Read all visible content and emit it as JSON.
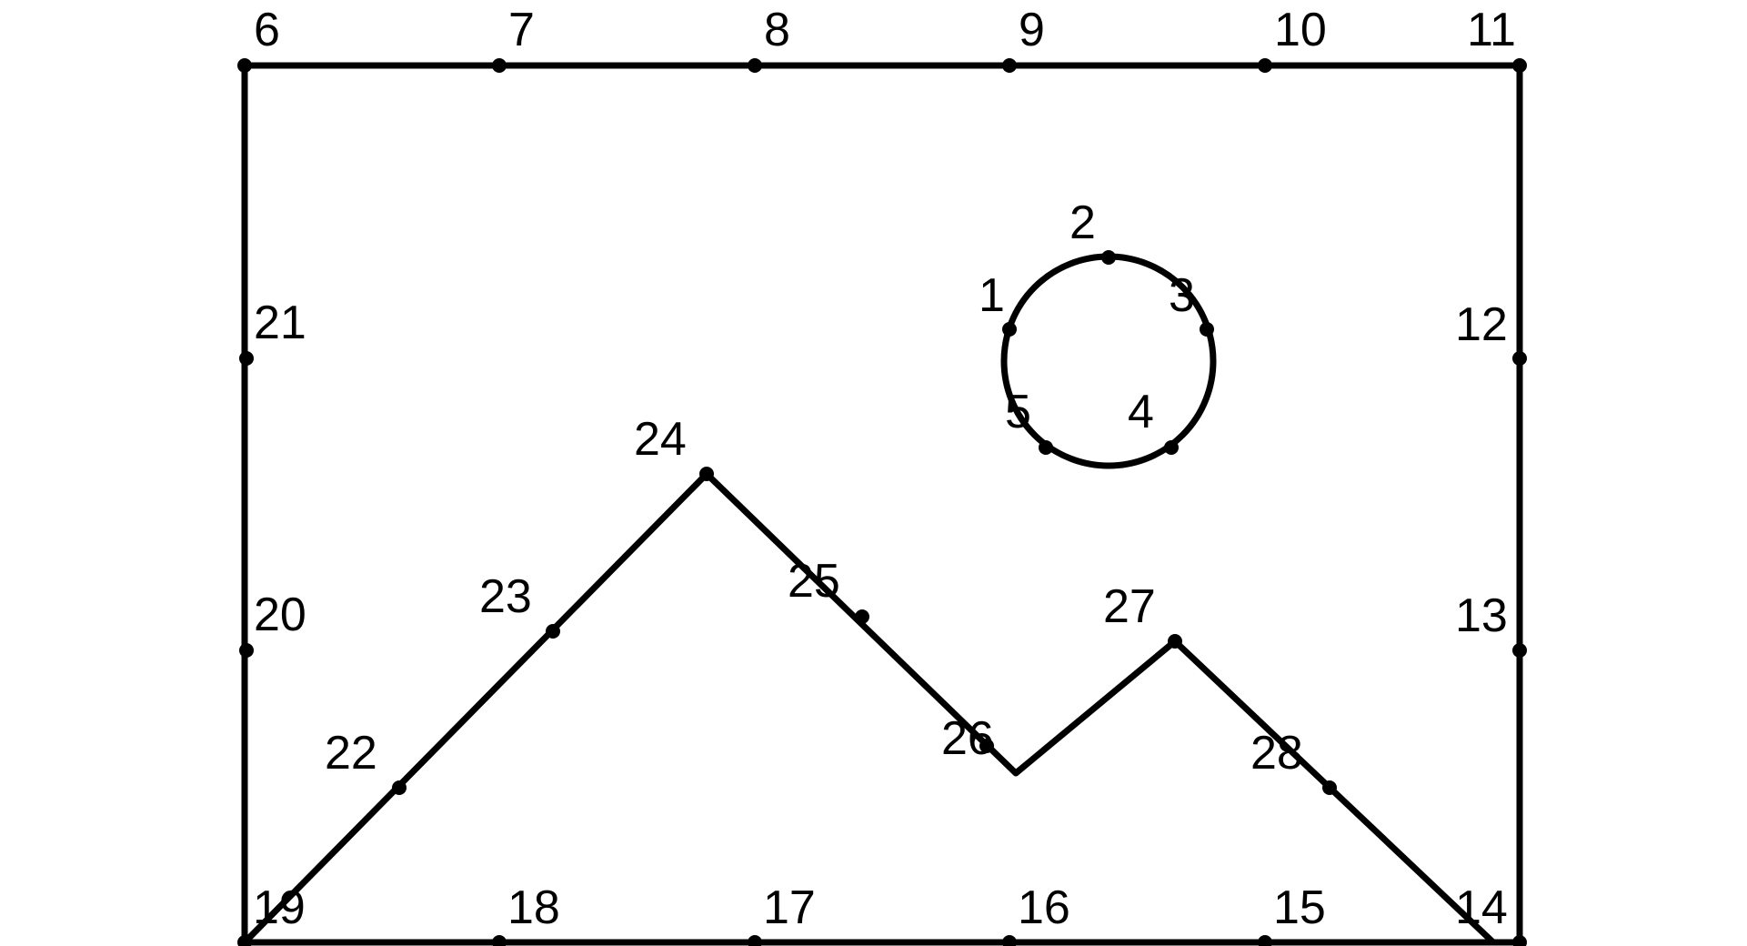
{
  "diagram": {
    "type": "connect-the-dots",
    "subject": "picture frame with sun and mountains",
    "line_color": "#000000",
    "background_color": "#ffffff",
    "points": [
      {
        "n": "1",
        "group": "sun"
      },
      {
        "n": "2",
        "group": "sun"
      },
      {
        "n": "3",
        "group": "sun"
      },
      {
        "n": "4",
        "group": "sun"
      },
      {
        "n": "5",
        "group": "sun"
      },
      {
        "n": "6",
        "group": "frame"
      },
      {
        "n": "7",
        "group": "frame"
      },
      {
        "n": "8",
        "group": "frame"
      },
      {
        "n": "9",
        "group": "frame"
      },
      {
        "n": "10",
        "group": "frame"
      },
      {
        "n": "11",
        "group": "frame"
      },
      {
        "n": "12",
        "group": "frame"
      },
      {
        "n": "13",
        "group": "frame"
      },
      {
        "n": "14",
        "group": "frame"
      },
      {
        "n": "15",
        "group": "frame"
      },
      {
        "n": "16",
        "group": "frame"
      },
      {
        "n": "17",
        "group": "frame"
      },
      {
        "n": "18",
        "group": "frame"
      },
      {
        "n": "19",
        "group": "frame"
      },
      {
        "n": "20",
        "group": "frame"
      },
      {
        "n": "21",
        "group": "frame"
      },
      {
        "n": "22",
        "group": "mountains"
      },
      {
        "n": "23",
        "group": "mountains"
      },
      {
        "n": "24",
        "group": "mountains"
      },
      {
        "n": "25",
        "group": "mountains"
      },
      {
        "n": "26",
        "group": "mountains"
      },
      {
        "n": "27",
        "group": "mountains"
      },
      {
        "n": "28",
        "group": "mountains"
      }
    ]
  }
}
